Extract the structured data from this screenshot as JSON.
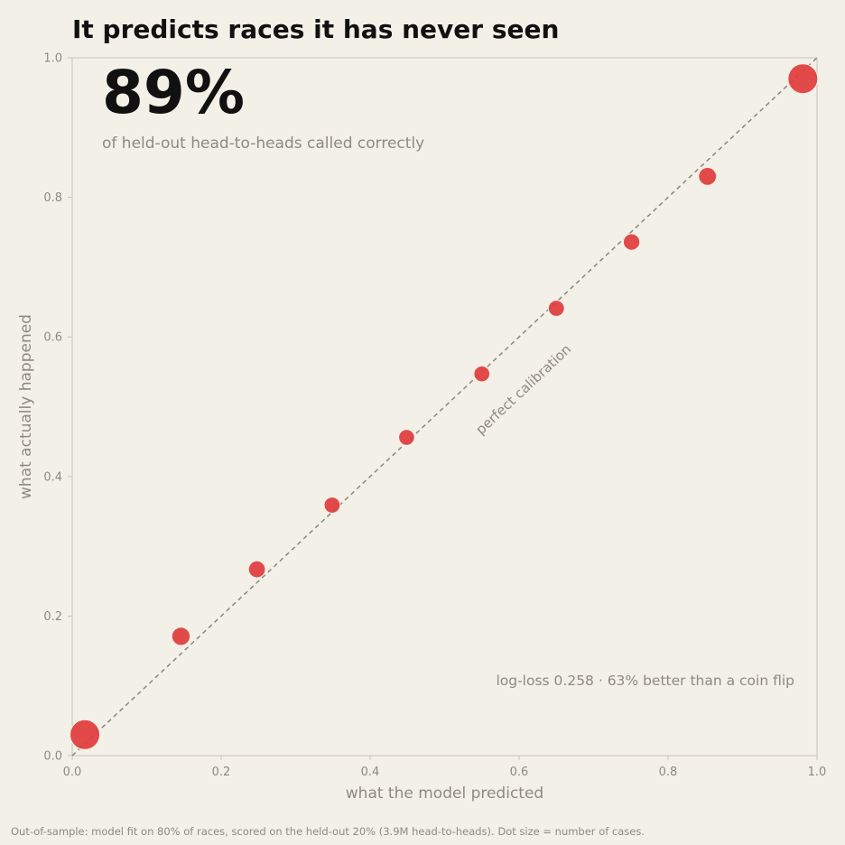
{
  "title": "It predicts races it has never seen",
  "footer": "Out-of-sample: model fit on 80% of races, scored on the held-out 20% (3.9M head-to-heads). Dot size = number of cases.",
  "colors": {
    "background": "#f3f0e7",
    "points": "#e03c3c",
    "diagonal": "#8a8780",
    "muted_text": "#8e8a82",
    "axis": "#c8c4b8"
  },
  "chart_data": {
    "type": "scatter",
    "title": "It predicts races it has never seen",
    "xlabel": "what the model predicted",
    "ylabel": "what actually happened",
    "xlim": [
      0,
      1
    ],
    "ylim": [
      0,
      1
    ],
    "xticks": [
      "0.0",
      "0.2",
      "0.4",
      "0.6",
      "0.8",
      "1.0"
    ],
    "yticks": [
      "0.0",
      "0.2",
      "0.4",
      "0.6",
      "0.8",
      "1.0"
    ],
    "grid": false,
    "reference_line": {
      "from": [
        0,
        0
      ],
      "to": [
        1,
        1
      ],
      "label": "perfect calibration",
      "style": "dashed"
    },
    "headline_value": "89%",
    "headline_caption": "of held-out head-to-heads called correctly",
    "annotation": "log-loss 0.258  ·  63% better than a coin flip",
    "points": [
      {
        "x": 0.017,
        "y": 0.03,
        "size": 1.0
      },
      {
        "x": 0.146,
        "y": 0.171,
        "size": 0.42
      },
      {
        "x": 0.248,
        "y": 0.267,
        "size": 0.35
      },
      {
        "x": 0.349,
        "y": 0.359,
        "size": 0.31
      },
      {
        "x": 0.449,
        "y": 0.456,
        "size": 0.3
      },
      {
        "x": 0.55,
        "y": 0.547,
        "size": 0.3
      },
      {
        "x": 0.65,
        "y": 0.641,
        "size": 0.31
      },
      {
        "x": 0.751,
        "y": 0.736,
        "size": 0.33
      },
      {
        "x": 0.853,
        "y": 0.83,
        "size": 0.4
      },
      {
        "x": 0.981,
        "y": 0.97,
        "size": 1.0
      }
    ]
  }
}
